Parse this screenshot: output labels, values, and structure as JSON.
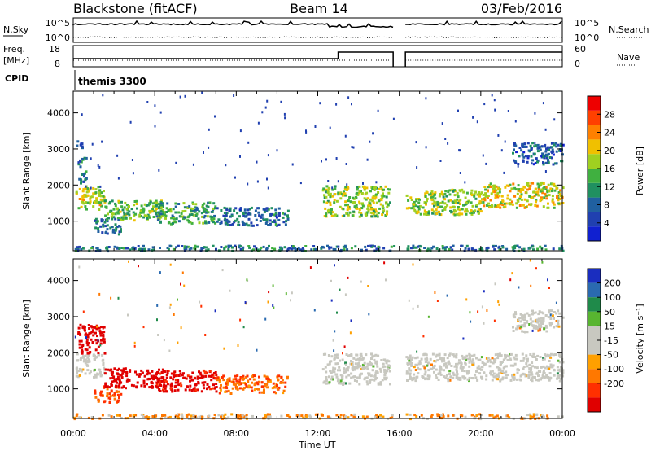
{
  "header": {
    "station": "Blackstone (fitACF)",
    "beam": "Beam 14",
    "date": "03/Feb/2016"
  },
  "nsky_panel": {
    "left_label": "N.Sky",
    "left_ticks": [
      "10^5",
      "10^0"
    ],
    "right_label": "N.Search",
    "right_ticks": [
      "10^5",
      "10^0"
    ]
  },
  "freq_panel": {
    "left_label_line1": "Freq.",
    "left_label_line2": "[MHz]",
    "left_ticks": [
      "18",
      "8"
    ],
    "right_label": "Nave",
    "right_ticks": [
      "60",
      "0"
    ]
  },
  "cpid_panel": {
    "label": "CPID",
    "value": "themis 3300"
  },
  "colors": {
    "power_scale": [
      "#1020d0",
      "#2040b0",
      "#2060a0",
      "#209060",
      "#40b040",
      "#a0d020",
      "#f0c000",
      "#ff8000",
      "#ff4000",
      "#ee0000"
    ],
    "velocity_scale": [
      "#1a2dbf",
      "#2a6ab0",
      "#1f8a4a",
      "#58b530",
      "#c8c8c0",
      "#c8c8c0",
      "#ffa000",
      "#ff7800",
      "#ff3000",
      "#e00000"
    ],
    "ground": "#c8c8c0"
  },
  "chart_data": [
    {
      "type": "heatmap",
      "name": "power",
      "xlabel": "",
      "ylabel": "Slant Range [km]",
      "xlim": [
        0,
        24
      ],
      "ylim": [
        180,
        4600
      ],
      "y_ticks": [
        1000,
        2000,
        3000,
        4000
      ],
      "x_tick_labels": [
        "00:00",
        "04:00",
        "08:00",
        "12:00",
        "16:00",
        "20:00",
        "00:00"
      ],
      "data_gap_hours": [
        15.7,
        16.3
      ],
      "colorbar": {
        "label": "Power [dB]",
        "range": [
          0,
          32
        ],
        "ticks": [
          4,
          8,
          12,
          16,
          20,
          24,
          28
        ]
      },
      "regions": [
        {
          "t0": 0.1,
          "t1": 1.5,
          "r0": 1350,
          "r1": 2000,
          "level": 18
        },
        {
          "t0": 0.2,
          "t1": 0.6,
          "r0": 2050,
          "r1": 2800,
          "level": 9
        },
        {
          "t0": 0.1,
          "t1": 0.4,
          "r0": 3000,
          "r1": 3300,
          "level": 6
        },
        {
          "t0": 1.0,
          "t1": 2.3,
          "r0": 650,
          "r1": 1100,
          "level": 8
        },
        {
          "t0": 1.5,
          "t1": 4.5,
          "r0": 1050,
          "r1": 1600,
          "level": 15
        },
        {
          "t0": 4.0,
          "t1": 7.0,
          "r0": 950,
          "r1": 1550,
          "level": 13
        },
        {
          "t0": 7.0,
          "t1": 10.5,
          "r0": 900,
          "r1": 1400,
          "level": 8
        },
        {
          "t0": 12.2,
          "t1": 15.5,
          "r0": 1150,
          "r1": 2000,
          "level": 17
        },
        {
          "t0": 16.3,
          "t1": 20.0,
          "r0": 1200,
          "r1": 1900,
          "level": 17
        },
        {
          "t0": 20.0,
          "t1": 24.0,
          "r0": 1400,
          "r1": 2100,
          "level": 19
        },
        {
          "t0": 21.5,
          "t1": 24.0,
          "r0": 2600,
          "r1": 3200,
          "level": 7
        },
        {
          "t0": 0.0,
          "t1": 24.0,
          "r0": 200,
          "r1": 350,
          "level": 9
        }
      ]
    },
    {
      "type": "heatmap",
      "name": "velocity",
      "xlabel": "Time UT",
      "ylabel": "Slant Range [km]",
      "xlim": [
        0,
        24
      ],
      "ylim": [
        180,
        4600
      ],
      "y_ticks": [
        1000,
        2000,
        3000,
        4000
      ],
      "x_tick_labels": [
        "00:00",
        "04:00",
        "08:00",
        "12:00",
        "16:00",
        "20:00",
        "00:00"
      ],
      "data_gap_hours": [
        15.7,
        16.3
      ],
      "colorbar": {
        "label": "Velocity [m s⁻¹]",
        "ticks": [
          "200",
          "100",
          "50",
          "15",
          "-15",
          "-50",
          "-100",
          "-200"
        ]
      },
      "regions": [
        {
          "t0": 0.1,
          "t1": 1.5,
          "r0": 1350,
          "r1": 2000,
          "v": 0
        },
        {
          "t0": 0.2,
          "t1": 1.5,
          "r0": 2000,
          "r1": 2800,
          "v": -250
        },
        {
          "t0": 1.0,
          "t1": 2.3,
          "r0": 650,
          "r1": 1100,
          "v": -80
        },
        {
          "t0": 1.5,
          "t1": 4.5,
          "r0": 1050,
          "r1": 1600,
          "v": -220
        },
        {
          "t0": 4.0,
          "t1": 7.0,
          "r0": 950,
          "r1": 1550,
          "v": -170
        },
        {
          "t0": 7.0,
          "t1": 10.5,
          "r0": 900,
          "r1": 1400,
          "v": -60
        },
        {
          "t0": 12.2,
          "t1": 15.5,
          "r0": 1150,
          "r1": 2000,
          "v": 0
        },
        {
          "t0": 16.3,
          "t1": 24.0,
          "r0": 1250,
          "r1": 2000,
          "v": 0
        },
        {
          "t0": 21.5,
          "t1": 24.0,
          "r0": 2600,
          "r1": 3200,
          "v": 0
        },
        {
          "t0": 0.0,
          "t1": 24.0,
          "r0": 200,
          "r1": 330,
          "v": -30
        }
      ]
    }
  ]
}
